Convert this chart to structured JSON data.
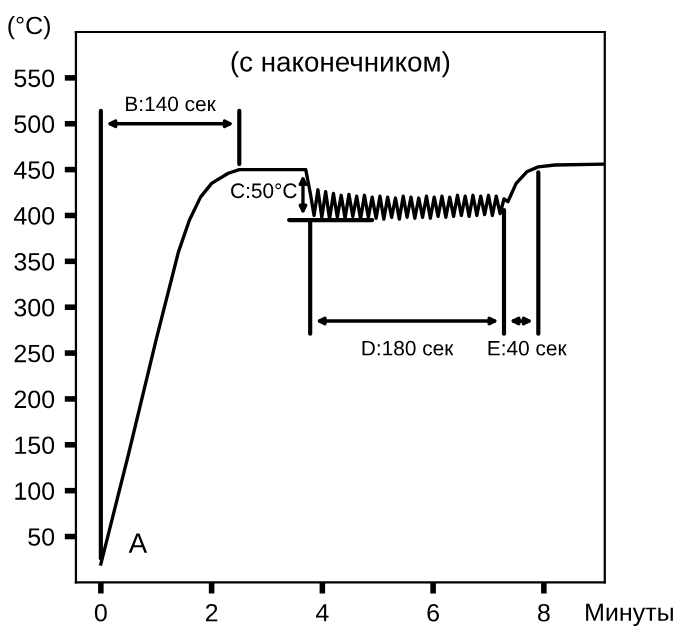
{
  "chart_data": {
    "type": "line",
    "title": "(с наконечником)",
    "xlabel": "Минуты",
    "ylabel": "(°C)",
    "x": [
      0,
      0.5,
      1.0,
      1.4,
      1.6,
      1.8,
      2.0,
      2.3,
      2.5,
      3.7,
      3.78,
      3.85,
      3.92,
      3.99,
      4.06,
      4.13,
      4.2,
      4.27,
      4.34,
      4.41,
      4.48,
      4.55,
      4.62,
      4.69,
      4.76,
      4.83,
      4.9,
      4.97,
      5.04,
      5.11,
      5.18,
      5.25,
      5.32,
      5.39,
      5.46,
      5.53,
      5.6,
      5.67,
      5.74,
      5.81,
      5.88,
      5.95,
      6.02,
      6.09,
      6.16,
      6.23,
      6.3,
      6.37,
      6.44,
      6.51,
      6.58,
      6.65,
      6.72,
      6.79,
      6.86,
      6.93,
      7.0,
      7.07,
      7.14,
      7.21,
      7.28,
      7.35,
      7.5,
      7.7,
      7.9,
      8.2,
      9.1
    ],
    "series": [
      {
        "color": "#000000",
        "values": [
          20,
          140,
          265,
          360,
          395,
          420,
          435,
          446,
          450,
          450,
          425,
          400,
          428,
          398,
          426,
          396,
          424,
          398,
          422,
          397,
          423,
          399,
          421,
          396,
          422,
          398,
          420,
          397,
          421,
          396,
          420,
          398,
          419,
          396,
          421,
          398,
          420,
          397,
          419,
          398,
          421,
          397,
          420,
          399,
          421,
          398,
          420,
          399,
          422,
          400,
          421,
          399,
          422,
          400,
          421,
          401,
          422,
          400,
          421,
          402,
          418,
          415,
          435,
          448,
          453,
          455,
          456
        ]
      }
    ],
    "xlim": [
      -0.45,
      9.1
    ],
    "ylim": [
      0,
      600
    ],
    "xticks": [
      0,
      2,
      4,
      6,
      8
    ],
    "yticks": [
      50,
      100,
      150,
      200,
      250,
      300,
      350,
      400,
      450,
      500,
      550
    ],
    "grid": false,
    "legend": false,
    "marker": "none",
    "line_style": "solid",
    "annotations": [
      {
        "text": "B:140 сек",
        "x": 2.5,
        "y": 450
      },
      {
        "text": "C:50°C",
        "x": 3.7,
        "y": 450
      },
      "D:180 сек",
      {
        "text": "E:40 сек",
        "x": 7.9,
        "y": 453
      },
      {
        "text": "A",
        "x": 0,
        "y": 20
      }
    ]
  }
}
